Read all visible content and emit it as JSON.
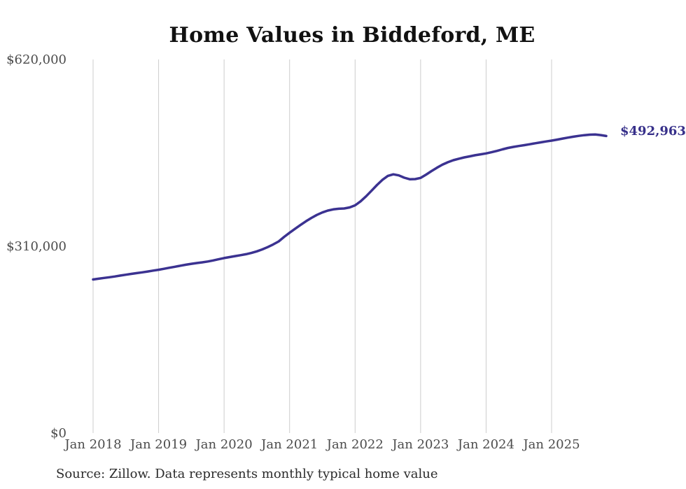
{
  "page": {
    "title": "Home Values in Biddeford, ME",
    "source_note": "Source: Zillow. Data represents monthly typical home value"
  },
  "chart_data": {
    "type": "line",
    "title": "Home Values in Biddeford, ME",
    "series_name": "Monthly typical home value",
    "unit": "USD",
    "x": [
      "2018-01",
      "2018-02",
      "2018-03",
      "2018-04",
      "2018-05",
      "2018-06",
      "2018-07",
      "2018-08",
      "2018-09",
      "2018-10",
      "2018-11",
      "2018-12",
      "2019-01",
      "2019-02",
      "2019-03",
      "2019-04",
      "2019-05",
      "2019-06",
      "2019-07",
      "2019-08",
      "2019-09",
      "2019-10",
      "2019-11",
      "2019-12",
      "2020-01",
      "2020-02",
      "2020-03",
      "2020-04",
      "2020-05",
      "2020-06",
      "2020-07",
      "2020-08",
      "2020-09",
      "2020-10",
      "2020-11",
      "2020-12",
      "2021-01",
      "2021-02",
      "2021-03",
      "2021-04",
      "2021-05",
      "2021-06",
      "2021-07",
      "2021-08",
      "2021-09",
      "2021-10",
      "2021-11",
      "2021-12",
      "2022-01",
      "2022-02",
      "2022-03",
      "2022-04",
      "2022-05",
      "2022-06",
      "2022-07",
      "2022-08",
      "2022-09",
      "2022-10",
      "2022-11",
      "2022-12",
      "2023-01",
      "2023-02",
      "2023-03",
      "2023-04",
      "2023-05",
      "2023-06",
      "2023-07",
      "2023-08",
      "2023-09",
      "2023-10",
      "2023-11",
      "2023-12",
      "2024-01",
      "2024-02",
      "2024-03",
      "2024-04",
      "2024-05",
      "2024-06",
      "2024-07",
      "2024-08",
      "2024-09",
      "2024-10",
      "2024-11",
      "2024-12",
      "2025-01",
      "2025-02",
      "2025-03",
      "2025-04",
      "2025-05",
      "2025-06",
      "2025-07",
      "2025-08",
      "2025-09",
      "2025-10",
      "2025-11"
    ],
    "values": [
      254800,
      256100,
      257400,
      258600,
      259900,
      261300,
      262700,
      264100,
      265400,
      266700,
      268100,
      269600,
      271000,
      272600,
      274300,
      276000,
      277700,
      279300,
      280800,
      282100,
      283300,
      284700,
      286400,
      288400,
      290400,
      292000,
      293600,
      295100,
      296800,
      298900,
      301500,
      304800,
      308600,
      313000,
      318000,
      325600,
      332400,
      338900,
      345300,
      351400,
      357000,
      362000,
      366100,
      369200,
      371200,
      372200,
      372700,
      374400,
      377900,
      384500,
      392800,
      402100,
      411600,
      420200,
      426800,
      429300,
      427600,
      423800,
      421200,
      421500,
      423400,
      428900,
      434800,
      440400,
      445400,
      449500,
      452800,
      455300,
      457400,
      459200,
      461000,
      462600,
      464100,
      466000,
      468300,
      470800,
      473100,
      474900,
      476400,
      477800,
      479300,
      480900,
      482400,
      483900,
      485300,
      487000,
      488700,
      490300,
      491800,
      493200,
      494400,
      495200,
      495400,
      494500,
      492963
    ],
    "end_label": "$492,963",
    "latest_value": 492963,
    "x_tick_labels": [
      "Jan 2018",
      "Jan 2019",
      "Jan 2020",
      "Jan 2021",
      "Jan 2022",
      "Jan 2023",
      "Jan 2024",
      "Jan 2025"
    ],
    "y_ticks": [
      {
        "value": 0,
        "label": "$0"
      },
      {
        "value": 310000,
        "label": "$310,000"
      },
      {
        "value": 620000,
        "label": "$620,000"
      }
    ],
    "ylim": [
      0,
      620000
    ],
    "grid": "vertical-yearly",
    "legend": "none",
    "colors": {
      "line": "#3b3291",
      "end_label": "#37308a",
      "grid": "#cccccc",
      "tick_text": "#4c4c4c",
      "title": "#111111",
      "source": "#2b2b2b",
      "background": "#ffffff"
    }
  }
}
